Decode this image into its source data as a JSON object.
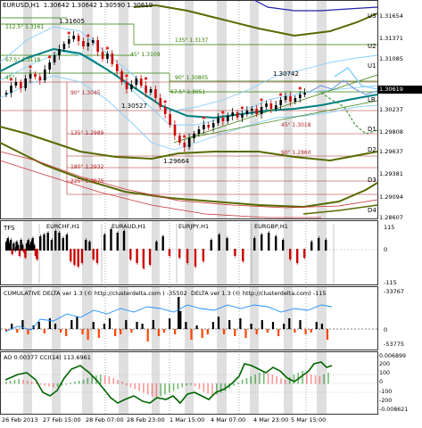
{
  "app": {
    "symbol_title": "EURUSD,H1",
    "quote": "1.30642 1.30642 1.30590 1.30619"
  },
  "main_chart": {
    "price_axis": [
      "1.31654",
      "1.31371",
      "1.31085",
      "1.30619",
      "1.30237",
      "1.29808",
      "1.29637",
      "1.29381",
      "1.29094",
      "1.28607"
    ],
    "current_price": "1.30619",
    "level_labels": [
      "U3",
      "U2",
      "U1",
      "LB",
      "D1",
      "D2",
      "D3",
      "D4"
    ],
    "gann_labels": [
      "112.5° 1.3161",
      "67.5° 1.3118",
      "45°",
      "45° 1.3109",
      "135° 1.3137",
      "90° 1.3045",
      "90° 1.30805",
      "67.5° 1.3051",
      "135° 1.2989",
      "180° 1.2932",
      "225° 1.2875",
      "90° 1.2860",
      "45° 1.3018"
    ],
    "price_marks": [
      "1.31605",
      "1.30527",
      "1.30742",
      "1.29664"
    ]
  },
  "tfs_panel": {
    "label": "TFS",
    "pairs": [
      "EURCHF,H1",
      "EURAUD,H1",
      "EURJPY,H1",
      "EURGBP,H1"
    ],
    "axis": [
      "115",
      "0",
      "-115"
    ]
  },
  "cumdelta_panel": {
    "title": "CUMULATIVE DELTA  ver 1.3 (© http://clusterdelta.com ) -35502",
    "title2": "DELTA  ver 1.3 (© http://clusterdelta.com) -115",
    "axis": [
      "-33767",
      "0",
      "-53775"
    ]
  },
  "ao_panel": {
    "title": "AO 0.00377  CCI(14) 113.6961",
    "axis": [
      "0.006899",
      "200",
      "100",
      "0",
      "-100",
      "-200",
      "-0.008621"
    ]
  },
  "time_axis": [
    "26 Feb 2013",
    "27 Feb 15:00",
    "28 Feb 07:00",
    "28 Feb 23:00",
    "1 Mar 15:00",
    "4 Mar 07:00",
    "4 Mar 23:00",
    "5 Mar 15:00"
  ],
  "colors": {
    "bull": "#000000",
    "bear": "#cc0000",
    "pivot_green": "#2e7d00",
    "dark_olive": "#556b00",
    "teal_ma": "#008080",
    "light_blue": "#87cefa",
    "session_shade": "#d4d4d4"
  }
}
